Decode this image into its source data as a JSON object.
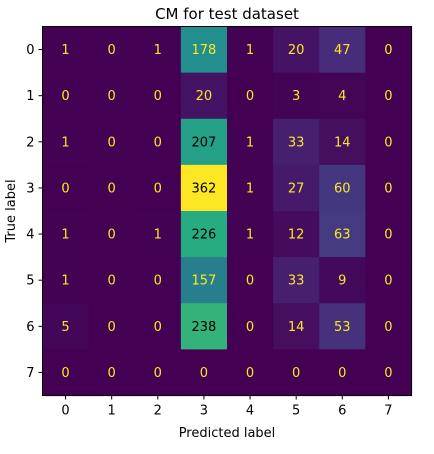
{
  "chart_data": {
    "type": "heatmap",
    "title": "CM for test dataset",
    "xlabel": "Predicted label",
    "ylabel": "True label",
    "x_tick_labels": [
      "0",
      "1",
      "2",
      "3",
      "4",
      "5",
      "6",
      "7"
    ],
    "y_tick_labels": [
      "0",
      "1",
      "2",
      "3",
      "4",
      "5",
      "6",
      "7"
    ],
    "colormap": "viridis",
    "value_range": [
      0,
      362
    ],
    "values": [
      [
        1,
        0,
        1,
        178,
        1,
        20,
        47,
        0
      ],
      [
        0,
        0,
        0,
        20,
        0,
        3,
        4,
        0
      ],
      [
        1,
        0,
        0,
        207,
        1,
        33,
        14,
        0
      ],
      [
        0,
        0,
        0,
        362,
        1,
        27,
        60,
        0
      ],
      [
        1,
        0,
        1,
        226,
        1,
        12,
        63,
        0
      ],
      [
        1,
        0,
        0,
        157,
        0,
        33,
        9,
        0
      ],
      [
        5,
        0,
        0,
        238,
        0,
        14,
        53,
        0
      ],
      [
        0,
        0,
        0,
        0,
        0,
        0,
        0,
        0
      ]
    ],
    "text_color_dark_cells": "#fde725",
    "text_color_light_cells": "#000000"
  }
}
